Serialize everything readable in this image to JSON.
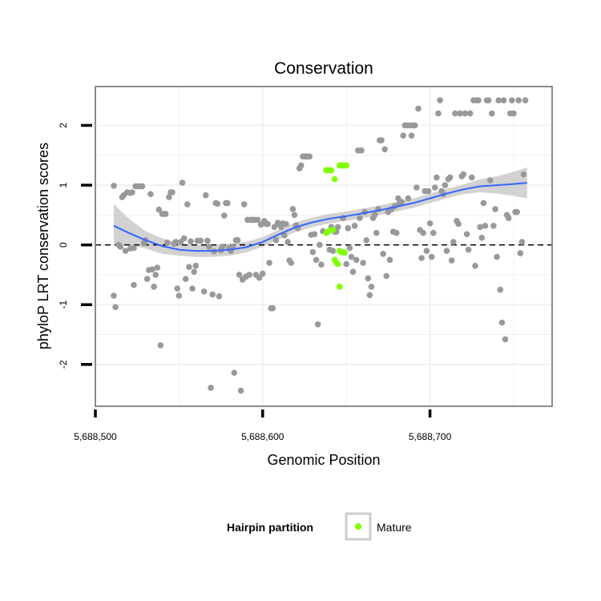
{
  "chart_data": {
    "type": "scatter",
    "title": "Conservation",
    "xlabel": "Genomic Position",
    "ylabel": "phyloP LRT conservation scores",
    "xlim": [
      5688500,
      5688773
    ],
    "ylim": [
      -2.7,
      2.65
    ],
    "x_ticks": [
      5688500,
      5688600,
      5688700
    ],
    "x_tick_labels": [
      "5,688,500",
      "5,688,600",
      "5,688,700"
    ],
    "y_ticks": [
      -2,
      -1,
      0,
      1,
      2
    ],
    "y_tick_labels": [
      "-2",
      "-1",
      "0",
      "1",
      "2"
    ],
    "grid": true,
    "reference_line": {
      "y": 0,
      "style": "dashed"
    },
    "colors": {
      "other": "#999999",
      "mature": "#7fff00",
      "smooth": "#3366ff",
      "band": "#bfbfbf"
    },
    "legend": {
      "title": "Hairpin partition",
      "placement": "bottom",
      "entries": [
        {
          "label": "Mature",
          "color": "#7fff00"
        }
      ]
    },
    "series": [
      {
        "key": "other",
        "points": [
          [
            5688511,
            0.99
          ],
          [
            5688511,
            -0.85
          ],
          [
            5688512,
            -1.04
          ],
          [
            5688514,
            0.0
          ],
          [
            5688515,
            -0.03
          ],
          [
            5688516,
            0.8
          ],
          [
            5688517,
            0.83
          ],
          [
            5688518,
            -0.1
          ],
          [
            5688519,
            0.88
          ],
          [
            5688521,
            0.87
          ],
          [
            5688521,
            -0.06
          ],
          [
            5688522,
            0.88
          ],
          [
            5688523,
            -0.05
          ],
          [
            5688523,
            -0.67
          ],
          [
            5688524,
            0.98
          ],
          [
            5688525,
            0.98
          ],
          [
            5688526,
            0.98
          ],
          [
            5688527,
            0.98
          ],
          [
            5688528,
            0.98
          ],
          [
            5688529,
            0.03
          ],
          [
            5688530,
            0.08
          ],
          [
            5688531,
            -0.57
          ],
          [
            5688532,
            -0.42
          ],
          [
            5688533,
            0.85
          ],
          [
            5688534,
            -0.41
          ],
          [
            5688535,
            -0.7
          ],
          [
            5688536,
            -0.5
          ],
          [
            5688537,
            -0.38
          ],
          [
            5688538,
            0.59
          ],
          [
            5688539,
            -1.68
          ],
          [
            5688540,
            0.52
          ],
          [
            5688541,
            0.52
          ],
          [
            5688542,
            0.52
          ],
          [
            5688543,
            0.04
          ],
          [
            5688544,
            0.8
          ],
          [
            5688545,
            0.88
          ],
          [
            5688546,
            0.88
          ],
          [
            5688547,
            0.02
          ],
          [
            5688548,
            0.05
          ],
          [
            5688549,
            -0.73
          ],
          [
            5688550,
            -0.85
          ],
          [
            5688551,
            0.05
          ],
          [
            5688552,
            1.04
          ],
          [
            5688553,
            0.11
          ],
          [
            5688554,
            -0.57
          ],
          [
            5688555,
            0.68
          ],
          [
            5688556,
            -0.37
          ],
          [
            5688557,
            0.06
          ],
          [
            5688558,
            -0.73
          ],
          [
            5688559,
            -0.45
          ],
          [
            5688560,
            -0.35
          ],
          [
            5688561,
            0.07
          ],
          [
            5688563,
            0.07
          ],
          [
            5688565,
            -0.78
          ],
          [
            5688566,
            0.83
          ],
          [
            5688567,
            0.07
          ],
          [
            5688568,
            -0.03
          ],
          [
            5688569,
            -2.39
          ],
          [
            5688570,
            -0.83
          ],
          [
            5688571,
            -0.11
          ],
          [
            5688572,
            0.7
          ],
          [
            5688573,
            0.69
          ],
          [
            5688574,
            -0.86
          ],
          [
            5688575,
            -0.09
          ],
          [
            5688576,
            -0.03
          ],
          [
            5688577,
            0.49
          ],
          [
            5688578,
            0.7
          ],
          [
            5688579,
            0.7
          ],
          [
            5688580,
            -0.05
          ],
          [
            5688581,
            -0.1
          ],
          [
            5688582,
            -0.03
          ],
          [
            5688583,
            -2.14
          ],
          [
            5688584,
            0.08
          ],
          [
            5688585,
            0.08
          ],
          [
            5688586,
            -0.5
          ],
          [
            5688587,
            -2.44
          ],
          [
            5688588,
            -0.58
          ],
          [
            5688589,
            0.68
          ],
          [
            5688590,
            -0.53
          ],
          [
            5688591,
            0.42
          ],
          [
            5688592,
            -0.5
          ],
          [
            5688593,
            0.42
          ],
          [
            5688594,
            0.42
          ],
          [
            5688595,
            0.42
          ],
          [
            5688596,
            -0.5
          ],
          [
            5688597,
            0.42
          ],
          [
            5688598,
            -0.55
          ],
          [
            5688599,
            0.34
          ],
          [
            5688600,
            -0.48
          ],
          [
            5688601,
            0.4
          ],
          [
            5688602,
            0.35
          ],
          [
            5688603,
            0.35
          ],
          [
            5688604,
            -0.3
          ],
          [
            5688605,
            -1.06
          ],
          [
            5688606,
            -1.06
          ],
          [
            5688607,
            0.3
          ],
          [
            5688608,
            0.08
          ],
          [
            5688609,
            0.37
          ],
          [
            5688610,
            0.35
          ],
          [
            5688611,
            0.3
          ],
          [
            5688612,
            0.36
          ],
          [
            5688613,
            0.16
          ],
          [
            5688614,
            0.35
          ],
          [
            5688615,
            0.05
          ],
          [
            5688616,
            -0.26
          ],
          [
            5688617,
            -0.3
          ],
          [
            5688618,
            0.6
          ],
          [
            5688619,
            0.5
          ],
          [
            5688620,
            0.33
          ],
          [
            5688621,
            0.28
          ],
          [
            5688622,
            1.28
          ],
          [
            5688623,
            1.33
          ],
          [
            5688624,
            1.48
          ],
          [
            5688625,
            1.48
          ],
          [
            5688626,
            1.48
          ],
          [
            5688627,
            1.48
          ],
          [
            5688628,
            1.48
          ],
          [
            5688629,
            0.17
          ],
          [
            5688630,
            -0.12
          ],
          [
            5688631,
            0.18
          ],
          [
            5688632,
            -0.25
          ],
          [
            5688633,
            -1.33
          ],
          [
            5688634,
            0.0
          ],
          [
            5688635,
            -0.33
          ],
          [
            5688636,
            0.23
          ],
          [
            5688640,
            -0.08
          ],
          [
            5688641,
            0.3
          ],
          [
            5688642,
            -0.1
          ],
          [
            5688643,
            0.22
          ],
          [
            5688644,
            0.22
          ],
          [
            5688645,
            0.3
          ],
          [
            5688648,
            0.45
          ],
          [
            5688650,
            -0.32
          ],
          [
            5688651,
            0.28
          ],
          [
            5688652,
            -0.05
          ],
          [
            5688653,
            -0.2
          ],
          [
            5688654,
            -0.45
          ],
          [
            5688655,
            0.32
          ],
          [
            5688656,
            -0.25
          ],
          [
            5688657,
            1.58
          ],
          [
            5688658,
            0.45
          ],
          [
            5688659,
            1.58
          ],
          [
            5688660,
            -0.3
          ],
          [
            5688661,
            0.55
          ],
          [
            5688662,
            0.08
          ],
          [
            5688663,
            -0.56
          ],
          [
            5688664,
            -0.84
          ],
          [
            5688665,
            -0.7
          ],
          [
            5688666,
            0.45
          ],
          [
            5688667,
            0.5
          ],
          [
            5688668,
            0.2
          ],
          [
            5688669,
            0.6
          ],
          [
            5688670,
            1.75
          ],
          [
            5688671,
            1.75
          ],
          [
            5688672,
            -0.15
          ],
          [
            5688673,
            1.6
          ],
          [
            5688674,
            -0.52
          ],
          [
            5688675,
            0.55
          ],
          [
            5688676,
            -0.25
          ],
          [
            5688677,
            0.6
          ],
          [
            5688678,
            0.22
          ],
          [
            5688679,
            0.65
          ],
          [
            5688680,
            0.2
          ],
          [
            5688681,
            0.78
          ],
          [
            5688682,
            0.7
          ],
          [
            5688683,
            0.72
          ],
          [
            5688684,
            1.83
          ],
          [
            5688685,
            2.0
          ],
          [
            5688686,
            2.0
          ],
          [
            5688687,
            0.78
          ],
          [
            5688688,
            2.0
          ],
          [
            5688689,
            1.83
          ],
          [
            5688690,
            2.0
          ],
          [
            5688691,
            2.0
          ],
          [
            5688692,
            0.96
          ],
          [
            5688693,
            2.28
          ],
          [
            5688694,
            0.25
          ],
          [
            5688695,
            -0.22
          ],
          [
            5688696,
            0.2
          ],
          [
            5688697,
            0.9
          ],
          [
            5688698,
            -0.1
          ],
          [
            5688699,
            0.9
          ],
          [
            5688700,
            0.36
          ],
          [
            5688701,
            -0.2
          ],
          [
            5688702,
            0.2
          ],
          [
            5688703,
            0.96
          ],
          [
            5688704,
            1.13
          ],
          [
            5688705,
            2.2
          ],
          [
            5688706,
            2.42
          ],
          [
            5688707,
            0.9
          ],
          [
            5688708,
            0.85
          ],
          [
            5688709,
            1.0
          ],
          [
            5688710,
            -0.1
          ],
          [
            5688711,
            1.1
          ],
          [
            5688712,
            1.13
          ],
          [
            5688713,
            -0.26
          ],
          [
            5688714,
            0.05
          ],
          [
            5688715,
            2.2
          ],
          [
            5688716,
            0.4
          ],
          [
            5688717,
            0.35
          ],
          [
            5688718,
            2.2
          ],
          [
            5688719,
            1.15
          ],
          [
            5688720,
            1.18
          ],
          [
            5688721,
            2.2
          ],
          [
            5688722,
            0.18
          ],
          [
            5688723,
            -0.08
          ],
          [
            5688724,
            2.2
          ],
          [
            5688725,
            1.13
          ],
          [
            5688726,
            2.42
          ],
          [
            5688727,
            -0.35
          ],
          [
            5688728,
            2.42
          ],
          [
            5688729,
            2.42
          ],
          [
            5688730,
            0.3
          ],
          [
            5688731,
            0.12
          ],
          [
            5688732,
            0.7
          ],
          [
            5688733,
            0.32
          ],
          [
            5688734,
            2.42
          ],
          [
            5688735,
            2.42
          ],
          [
            5688736,
            1.08
          ],
          [
            5688737,
            2.2
          ],
          [
            5688738,
            0.32
          ],
          [
            5688739,
            0.6
          ],
          [
            5688740,
            -0.2
          ],
          [
            5688741,
            2.42
          ],
          [
            5688742,
            -0.75
          ],
          [
            5688743,
            -1.3
          ],
          [
            5688744,
            2.42
          ],
          [
            5688745,
            -1.58
          ],
          [
            5688746,
            0.5
          ],
          [
            5688747,
            0.45
          ],
          [
            5688748,
            2.2
          ],
          [
            5688749,
            2.42
          ],
          [
            5688750,
            2.2
          ],
          [
            5688751,
            0.55
          ],
          [
            5688752,
            0.55
          ],
          [
            5688753,
            2.42
          ],
          [
            5688754,
            -0.14
          ],
          [
            5688755,
            0.05
          ],
          [
            5688756,
            1.18
          ],
          [
            5688757,
            2.42
          ]
        ]
      },
      {
        "key": "mature",
        "name": "Mature",
        "points": [
          [
            5688638,
            1.25
          ],
          [
            5688639,
            1.25
          ],
          [
            5688640,
            1.25
          ],
          [
            5688641,
            1.25
          ],
          [
            5688643,
            1.1
          ],
          [
            5688646,
            1.33
          ],
          [
            5688647,
            1.33
          ],
          [
            5688648,
            1.33
          ],
          [
            5688649,
            1.33
          ],
          [
            5688650,
            1.33
          ],
          [
            5688638,
            0.2
          ],
          [
            5688639,
            0.22
          ],
          [
            5688641,
            0.25
          ],
          [
            5688642,
            0.25
          ],
          [
            5688643,
            -0.25
          ],
          [
            5688644,
            -0.3
          ],
          [
            5688645,
            -0.32
          ],
          [
            5688646,
            -0.1
          ],
          [
            5688647,
            -0.12
          ],
          [
            5688648,
            -0.12
          ],
          [
            5688649,
            -0.13
          ],
          [
            5688646,
            -0.7
          ]
        ]
      }
    ],
    "smooth": {
      "x": [
        5688511,
        5688520,
        5688530,
        5688540,
        5688550,
        5688560,
        5688570,
        5688580,
        5688590,
        5688600,
        5688610,
        5688620,
        5688630,
        5688640,
        5688650,
        5688660,
        5688670,
        5688680,
        5688690,
        5688700,
        5688710,
        5688720,
        5688730,
        5688740,
        5688750,
        5688758
      ],
      "y": [
        0.32,
        0.2,
        0.08,
        -0.02,
        -0.08,
        -0.1,
        -0.1,
        -0.08,
        -0.04,
        0.05,
        0.18,
        0.3,
        0.38,
        0.44,
        0.48,
        0.53,
        0.58,
        0.64,
        0.7,
        0.78,
        0.86,
        0.93,
        0.98,
        1.0,
        1.02,
        1.04
      ],
      "lower": [
        0.0,
        0.0,
        -0.06,
        -0.15,
        -0.18,
        -0.2,
        -0.2,
        -0.18,
        -0.13,
        -0.03,
        0.1,
        0.22,
        0.3,
        0.36,
        0.4,
        0.45,
        0.5,
        0.56,
        0.62,
        0.7,
        0.78,
        0.85,
        0.88,
        0.86,
        0.82,
        0.78
      ],
      "upper": [
        0.68,
        0.44,
        0.23,
        0.11,
        0.02,
        0.0,
        0.0,
        0.02,
        0.05,
        0.13,
        0.26,
        0.38,
        0.46,
        0.52,
        0.56,
        0.61,
        0.66,
        0.72,
        0.78,
        0.86,
        0.94,
        1.01,
        1.1,
        1.15,
        1.22,
        1.3
      ]
    }
  }
}
